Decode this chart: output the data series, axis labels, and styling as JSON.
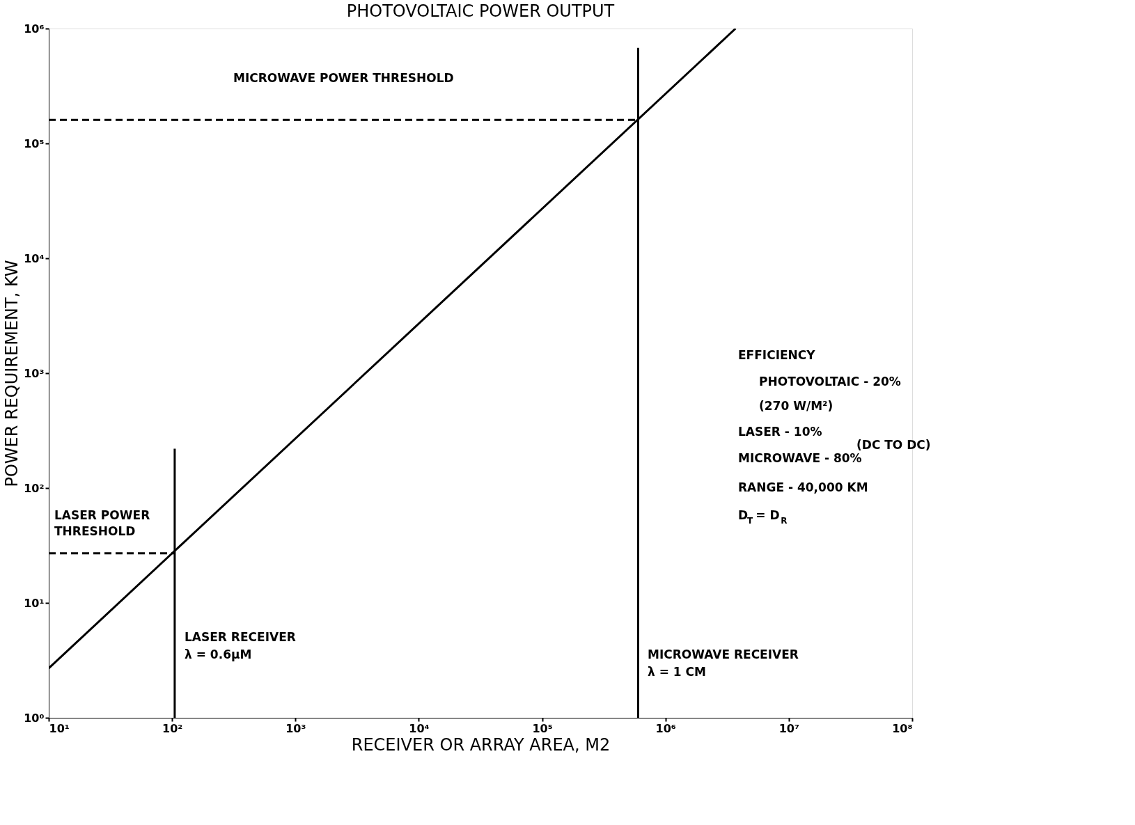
{
  "chart_data": {
    "type": "line",
    "title": "PHOTOVOLTAIC POWER OUTPUT",
    "xlabel": "RECEIVER OR ARRAY AREA, M2",
    "ylabel": "POWER REQUIREMENT, KW",
    "log": "xy",
    "grid": false,
    "marker": "none",
    "xlim": [
      10,
      100000000
    ],
    "ylim": [
      1,
      1000000
    ],
    "xticks": [
      {
        "value": 10,
        "label": "10¹"
      },
      {
        "value": 100,
        "label": "10²"
      },
      {
        "value": 1000,
        "label": "10³"
      },
      {
        "value": 10000,
        "label": "10⁴"
      },
      {
        "value": 100000,
        "label": "10⁵"
      },
      {
        "value": 1000000,
        "label": "10⁶"
      },
      {
        "value": 10000000,
        "label": "10⁷"
      },
      {
        "value": 100000000,
        "label": "10⁸"
      }
    ],
    "yticks": [
      {
        "value": 1,
        "label": "10⁰"
      },
      {
        "value": 10,
        "label": "10¹"
      },
      {
        "value": 100,
        "label": "10²"
      },
      {
        "value": 1000,
        "label": "10³"
      },
      {
        "value": 10000,
        "label": "10⁴"
      },
      {
        "value": 100000,
        "label": "10⁵"
      },
      {
        "value": 1000000,
        "label": "10⁶"
      }
    ],
    "series": [
      {
        "color": "#000000",
        "line_style": "solid",
        "x": [
          10,
          3700000
        ],
        "values": [
          2.7,
          1000000
        ]
      },
      {
        "color": "#000000",
        "line_style": "dashed",
        "x": [
          10,
          105
        ],
        "values": [
          27,
          27
        ]
      },
      {
        "color": "#000000",
        "line_style": "dashed",
        "x": [
          10,
          600000
        ],
        "values": [
          160000,
          160000
        ]
      },
      {
        "color": "#000000",
        "line_style": "solid",
        "x": [
          105,
          105
        ],
        "values": [
          1,
          220
        ]
      },
      {
        "color": "#000000",
        "line_style": "solid",
        "x": [
          600000,
          600000
        ],
        "values": [
          1,
          680000
        ]
      }
    ],
    "annotations": [
      "MICROWAVE POWER THRESHOLD",
      "LASER POWER",
      "THRESHOLD",
      "LASER RECEIVER",
      "λ = 0.6μM",
      "MICROWAVE RECEIVER",
      "λ = 1 CM",
      "EFFICIENCY",
      "PHOTOVOLTAIC - 20%",
      "(270 W/M²)",
      "LASER - 10%",
      "MICROWAVE - 80%",
      "(DC TO DC)",
      "RANGE - 40,000 KM",
      "D$_{T}$ = D$_{R}$"
    ]
  }
}
